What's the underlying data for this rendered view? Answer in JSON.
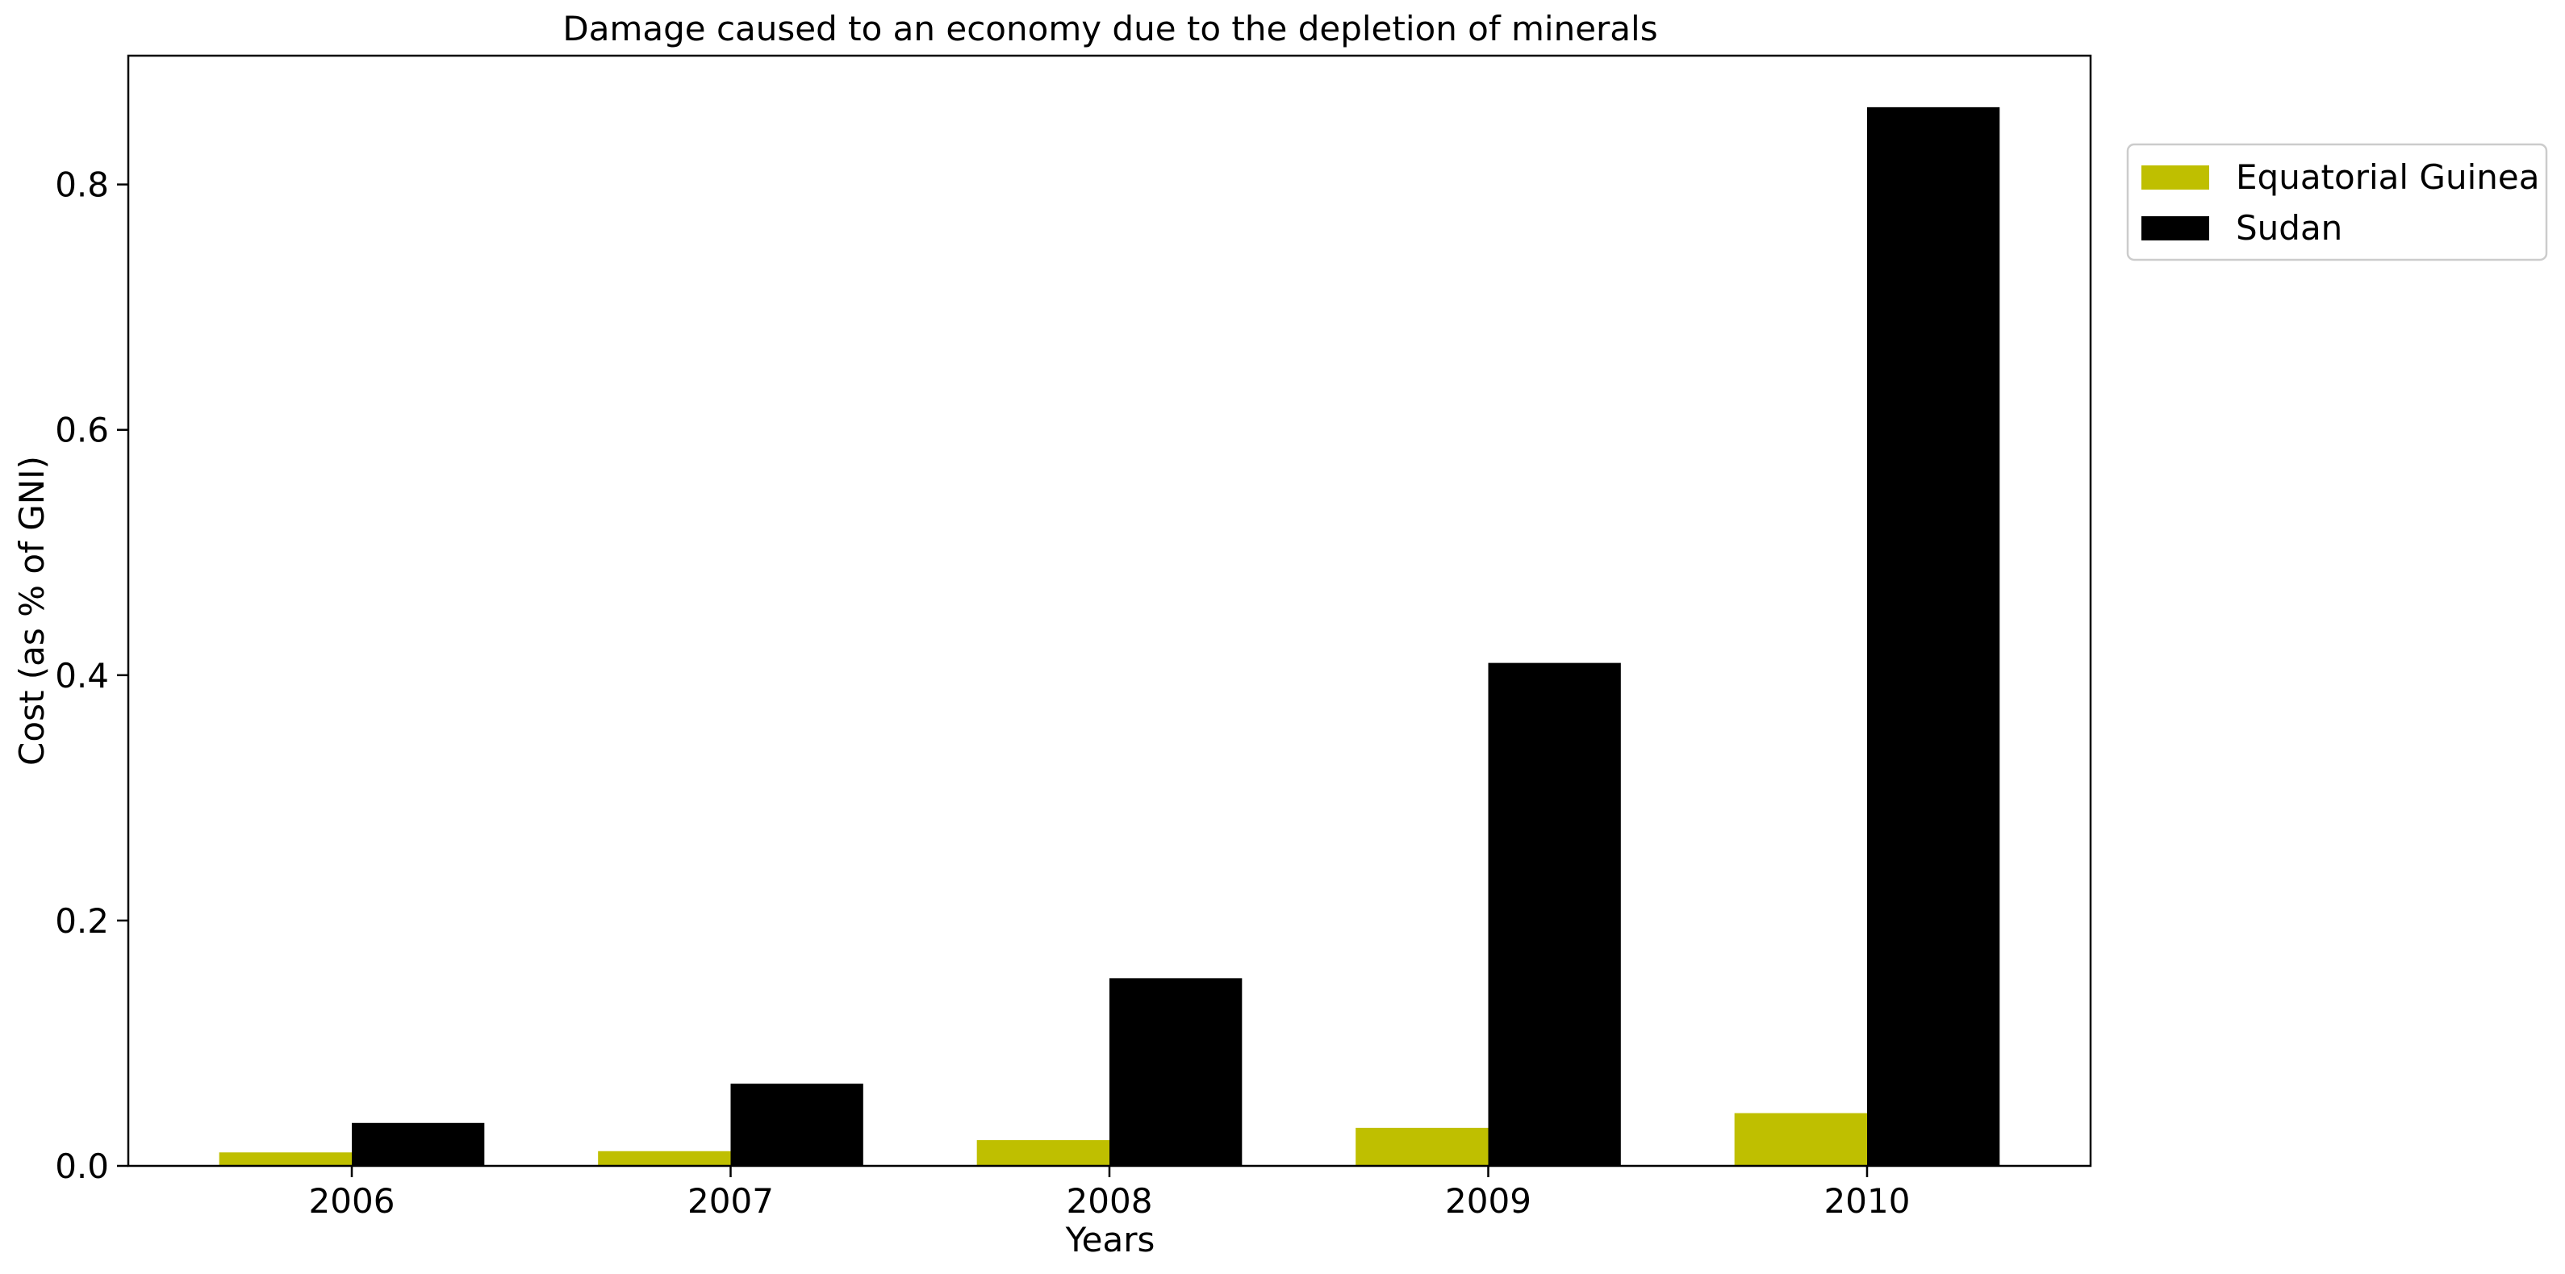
{
  "chart_data": {
    "type": "bar",
    "title": "Damage caused to an economy due to the depletion of minerals",
    "xlabel": "Years",
    "ylabel": "Cost (as % of GNI)",
    "categories": [
      "2006",
      "2007",
      "2008",
      "2009",
      "2010"
    ],
    "series": [
      {
        "name": "Equatorial Guinea",
        "color": "#bfbf00",
        "values": [
          0.011,
          0.012,
          0.021,
          0.031,
          0.043
        ]
      },
      {
        "name": "Sudan",
        "color": "#000000",
        "values": [
          0.035,
          0.067,
          0.153,
          0.41,
          0.863
        ]
      }
    ],
    "ylim": [
      0,
      0.905
    ],
    "yticks": [
      0.0,
      0.2,
      0.4,
      0.6,
      0.8
    ],
    "ytick_labels": [
      "0.0",
      "0.2",
      "0.4",
      "0.6",
      "0.8"
    ],
    "grid": false,
    "legend_position": "outside-top-right"
  }
}
